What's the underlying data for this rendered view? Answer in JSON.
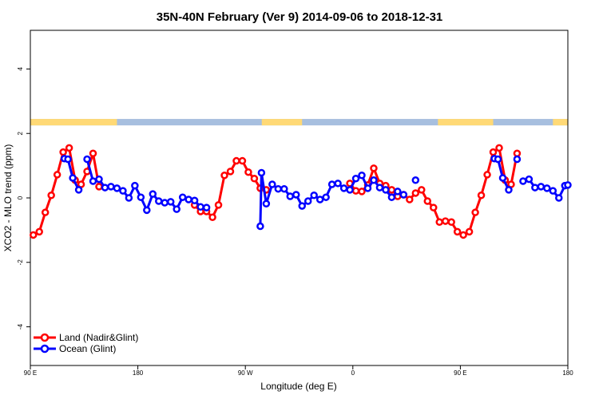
{
  "chart_data": {
    "type": "line",
    "title": "35N-40N February (Ver 9)   2014-09-06 to 2018-12-31",
    "xlabel": "Longitude (deg E)",
    "ylabel": "XCO2 - MLO trend (ppm)",
    "xlim": [
      90,
      450
    ],
    "ylim": [
      -5.2,
      5.2
    ],
    "x_ticks": [
      {
        "value": 90,
        "label": "90 E"
      },
      {
        "value": 180,
        "label": "180"
      },
      {
        "value": 270,
        "label": "90 W"
      },
      {
        "value": 360,
        "label": "0"
      },
      {
        "value": 450,
        "label": "90 E"
      },
      {
        "value": 540,
        "label": "180"
      }
    ],
    "y_ticks": [
      {
        "value": -4,
        "label": "-4"
      },
      {
        "value": -2,
        "label": "-2"
      },
      {
        "value": 0,
        "label": "0"
      },
      {
        "value": 2,
        "label": "2"
      },
      {
        "value": 4,
        "label": "4"
      }
    ],
    "x_scale_note": "",
    "grid": false,
    "legend_position": "bottom-left",
    "land_sea_strip": {
      "y_range": [
        2.25,
        2.45
      ],
      "land_color": "#ffd976",
      "ocean_color": "#a7bfdf"
    },
    "series": [
      {
        "name": "Land (Nadir&Glint)",
        "color": "#ff0000",
        "x": [
          92.5,
          97.5,
          102.5,
          107.5,
          112.5,
          117.5,
          122.5,
          127.5,
          132.5,
          137.5,
          142.5,
          147.5,
          227.5,
          232.5,
          237.5,
          242.5,
          247.5,
          252.5,
          257.5,
          262.5,
          267.5,
          272.5,
          277.5,
          282.5,
          287.5,
          357.5,
          362.5,
          367.5,
          372.5,
          377.5,
          382.5,
          387.5,
          392.5,
          397.5,
          402.5,
          407.5,
          412.5,
          417.5,
          422.5,
          427.5,
          432.5,
          437.5,
          442.5,
          447.5,
          452.5,
          457.5,
          462.5,
          467.5,
          472.5,
          477.5,
          482.5,
          487.5,
          492.5,
          497.5
        ],
        "y": [
          -1.15,
          -1.05,
          -0.45,
          0.08,
          0.72,
          1.42,
          1.55,
          0.55,
          0.42,
          0.82,
          1.38,
          0.35,
          -0.22,
          -0.42,
          -0.42,
          -0.6,
          -0.22,
          0.7,
          0.82,
          1.15,
          1.15,
          0.8,
          0.6,
          0.3,
          0.25,
          0.45,
          0.22,
          0.2,
          0.4,
          0.92,
          0.45,
          0.38,
          0.25,
          0.05,
          0.1,
          -0.05,
          0.15,
          0.25,
          -0.1,
          -0.3,
          -0.75,
          -0.72,
          -0.75,
          -1.05,
          -1.15,
          -1.05,
          -0.45,
          0.08,
          0.72,
          1.42,
          1.55,
          0.55,
          0.42,
          1.38
        ]
      },
      {
        "name": "Ocean (Glint)",
        "color": "#0000ff",
        "x": [
          118.5,
          121.5,
          125.5,
          130.5,
          137.5,
          142.5,
          147.5,
          152.5,
          157.5,
          162.5,
          167.5,
          172.5,
          177.5,
          182.5,
          187.5,
          192.5,
          197.5,
          202.5,
          207.5,
          212.5,
          217.5,
          222.5,
          227.5,
          232.5,
          237.5,
          282.5,
          283.5,
          287.5,
          292.5,
          297.5,
          302.5,
          307.5,
          312.5,
          317.5,
          322.5,
          327.5,
          332.5,
          337.5,
          342.5,
          347.5,
          352.5,
          357.5,
          362.5,
          367.5,
          372.5,
          377.5,
          382.5,
          387.5,
          392.5,
          397.5,
          402.5,
          412.5,
          478.5,
          481.5,
          485.5,
          490.5,
          497.5
        ],
        "y": [
          1.22,
          1.2,
          0.62,
          0.25,
          1.2,
          0.52,
          0.58,
          0.32,
          0.35,
          0.3,
          0.22,
          0.0,
          0.38,
          0.02,
          -0.38,
          0.12,
          -0.1,
          -0.15,
          -0.12,
          -0.35,
          0.02,
          -0.05,
          -0.08,
          -0.28,
          -0.3,
          -0.88,
          0.78,
          -0.18,
          0.42,
          0.28,
          0.28,
          0.05,
          0.1,
          -0.25,
          -0.1,
          0.08,
          -0.05,
          0.02,
          0.42,
          0.45,
          0.3,
          0.25,
          0.6,
          0.7,
          0.3,
          0.55,
          0.32,
          0.25,
          0.02,
          0.2,
          0.1,
          0.55,
          1.22,
          1.2,
          0.62,
          0.25,
          1.2
        ]
      },
      {
        "name": "Ocean (Glint) tail",
        "color": "#0000ff",
        "x": [
          502.5,
          507.5,
          512.5,
          517.5,
          522.5,
          527.5,
          532.5,
          537.5,
          540.0
        ],
        "y": [
          0.52,
          0.58,
          0.32,
          0.35,
          0.3,
          0.22,
          0.0,
          0.38,
          0.4
        ]
      }
    ]
  },
  "legend": {
    "items": [
      {
        "label": "Land (Nadir&Glint)",
        "color": "#ff0000"
      },
      {
        "label": "Ocean (Glint)",
        "color": "#0000ff"
      }
    ]
  }
}
